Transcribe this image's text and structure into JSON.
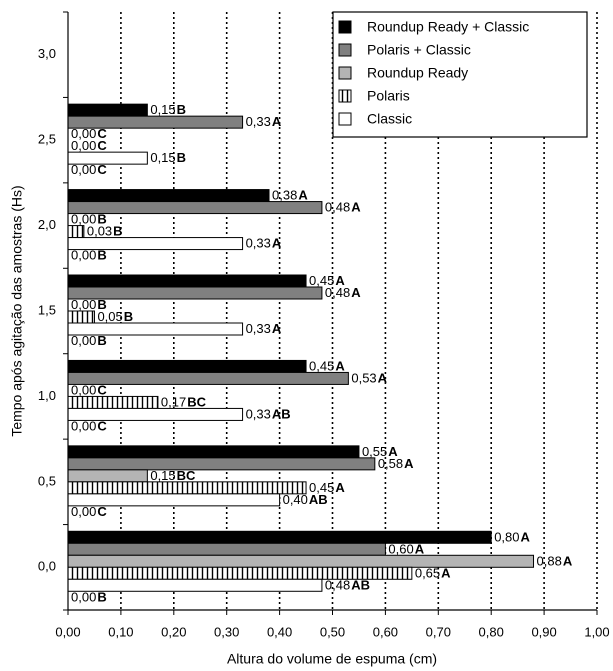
{
  "chart_data": {
    "type": "bar",
    "orientation": "horizontal",
    "xlabel": "Altura do volume de espuma (cm)",
    "ylabel": "Tempo após agitação das amostras (Hs)",
    "categories": [
      "0,0",
      "0,5",
      "1,0",
      "1,5",
      "2,0",
      "2,5",
      "3,0"
    ],
    "series": [
      {
        "name": "Roundup Ready + Classic",
        "color": "#000000",
        "values": [
          0.8,
          0.55,
          0.45,
          0.45,
          0.38,
          0.15,
          null
        ],
        "value_labels": [
          "0,80",
          "0,55",
          "0,45",
          "0,45",
          "0,38",
          "0,15",
          null
        ],
        "groups": [
          "A",
          "A",
          "A",
          "A",
          "A",
          "B",
          null
        ]
      },
      {
        "name": "Polaris + Classic",
        "color": "#808080",
        "values": [
          0.6,
          0.58,
          0.53,
          0.48,
          0.48,
          0.33,
          null
        ],
        "value_labels": [
          "0,60",
          "0,58",
          "0,53",
          "0,48",
          "0,48",
          "0,33",
          null
        ],
        "groups": [
          "A",
          "A",
          "A",
          "A",
          "A",
          "A",
          null
        ]
      },
      {
        "name": "Roundup Ready",
        "color": "#b4b4b4",
        "values": [
          0.88,
          0.15,
          0.0,
          0.0,
          0.0,
          0.0,
          null
        ],
        "value_labels": [
          "0,88",
          "0,15",
          "0,00",
          "0,00",
          "0,00",
          "0,00",
          null
        ],
        "groups": [
          "A",
          "BC",
          "C",
          "B",
          "B",
          "C",
          null
        ]
      },
      {
        "name": "Polaris",
        "color": "hatch",
        "values": [
          0.65,
          0.45,
          0.17,
          0.05,
          0.03,
          0.0,
          null
        ],
        "value_labels": [
          "0,65",
          "0,45",
          "0,17",
          "0,05",
          "0,03",
          "0,00",
          null
        ],
        "groups": [
          "A",
          "A",
          "BC",
          "B",
          "B",
          "C",
          null
        ]
      },
      {
        "name": "Classic",
        "color": "#ffffff",
        "values": [
          0.48,
          0.4,
          0.33,
          0.33,
          0.33,
          0.15,
          null
        ],
        "value_labels": [
          "0,48",
          "0,40",
          "0,33",
          "0,33",
          "0,33",
          "0,15",
          null
        ],
        "groups": [
          "AB",
          "AB",
          "AB",
          "A",
          "A",
          "B",
          null
        ]
      },
      {
        "name": null,
        "color": "#ffffff",
        "values": [
          0.0,
          0.0,
          0.0,
          0.0,
          0.0,
          0.0,
          null
        ],
        "value_labels": [
          "0,00",
          "0,00",
          "0,00",
          "0,00",
          "0,00",
          "0,00",
          null
        ],
        "groups": [
          "B",
          "C",
          "C",
          "B",
          "B",
          "C",
          null
        ]
      }
    ],
    "xlim": [
      0,
      1
    ],
    "xticks": [
      {
        "value": 0,
        "label": "0,00"
      },
      {
        "value": 0.1,
        "label": "0,10"
      },
      {
        "value": 0.2,
        "label": "0,20"
      },
      {
        "value": 0.3,
        "label": "0,30"
      },
      {
        "value": 0.4,
        "label": "0,40"
      },
      {
        "value": 0.5,
        "label": "0,50"
      },
      {
        "value": 0.6,
        "label": "0,60"
      },
      {
        "value": 0.7,
        "label": "0,70"
      },
      {
        "value": 0.8,
        "label": "0,80"
      },
      {
        "value": 0.9,
        "label": "0,90"
      },
      {
        "value": 1,
        "label": "1,00"
      }
    ],
    "grid": true,
    "legend": "top-right"
  }
}
